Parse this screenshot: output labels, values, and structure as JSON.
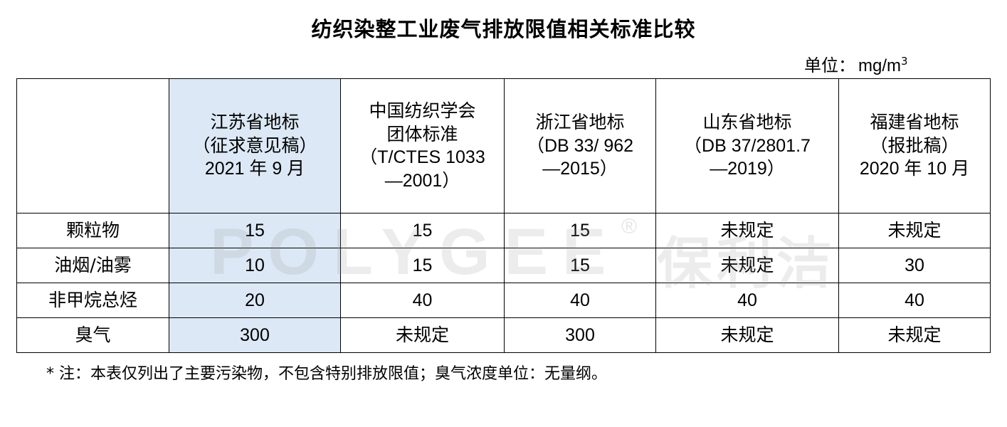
{
  "title": "纺织染整工业废气排放限值相关标准比较",
  "unit": {
    "label": "单位：",
    "value": "mg/m",
    "sup": "3"
  },
  "columns": [
    {
      "lines": [
        "",
        "",
        "",
        ""
      ]
    },
    {
      "lines": [
        "江苏省地标",
        "（征求意见稿）",
        "2021 年 9 月",
        ""
      ]
    },
    {
      "lines": [
        "中国纺织学会",
        "团体标准",
        "（T/CTES 1033",
        "—2001）"
      ]
    },
    {
      "lines": [
        "浙江省地标",
        "（DB 33/ 962",
        "—2015）",
        ""
      ]
    },
    {
      "lines": [
        "山东省地标",
        "（DB 37/2801.7",
        "—2019）",
        ""
      ]
    },
    {
      "lines": [
        "福建省地标",
        "（报批稿）",
        "2020 年 10 月",
        ""
      ]
    }
  ],
  "rows": [
    {
      "name": "颗粒物",
      "values": [
        "15",
        "15",
        "15",
        "未规定",
        "未规定"
      ]
    },
    {
      "name": "油烟/油雾",
      "values": [
        "10",
        "15",
        "15",
        "未规定",
        "30"
      ]
    },
    {
      "name": "非甲烷总烃",
      "values": [
        "20",
        "40",
        "40",
        "40",
        "40"
      ]
    },
    {
      "name": "臭气",
      "values": [
        "300",
        "未规定",
        "300",
        "未规定",
        "未规定"
      ]
    }
  ],
  "watermark": {
    "brand": "POLYGEE",
    "registered": "®",
    "chinese": "保利洁"
  },
  "note": "* 注：本表仅列出了主要污染物，不包含特别排放限值；臭气浓度单位：无量纲。"
}
